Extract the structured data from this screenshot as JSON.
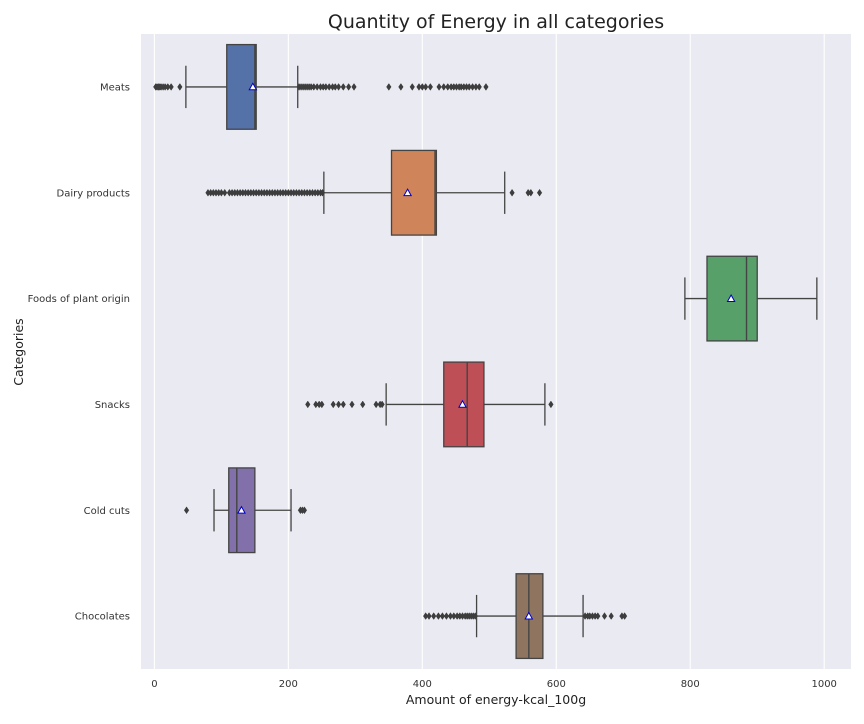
{
  "chart_data": {
    "type": "boxplot",
    "orientation": "horizontal",
    "title": "Quantity of Energy in all categories",
    "xlabel": "Amount of energy-kcal_100g",
    "ylabel": "Categories",
    "xlim": [
      -20,
      1040
    ],
    "xticks": [
      0,
      200,
      400,
      600,
      800,
      1000
    ],
    "grid": true,
    "mean_marker": "triangle",
    "colors": {
      "background": "#eaeaf2",
      "grid": "#ffffff",
      "mean_fill": "#ffffff",
      "mean_edge": "#0000cc",
      "line": "#444444"
    },
    "series": [
      {
        "category": "Meats",
        "color": "#5471a8",
        "whisker_low": 47,
        "q1": 108,
        "median": 150,
        "q3": 152,
        "whisker_high": 214,
        "mean": 147,
        "outliers": [
          2,
          4,
          6,
          8,
          10,
          13,
          16,
          20,
          25,
          38,
          216,
          219,
          222,
          225,
          228,
          231,
          234,
          238,
          243,
          248,
          252,
          256,
          261,
          266,
          270,
          275,
          282,
          290,
          298,
          350,
          368,
          385,
          395,
          400,
          405,
          412,
          425,
          432,
          438,
          443,
          447,
          451,
          455,
          458,
          462,
          466,
          470,
          475,
          480,
          485,
          495
        ]
      },
      {
        "category": "Dairy products",
        "color": "#cf845a",
        "whisker_low": 253,
        "q1": 354,
        "median": 419,
        "q3": 421,
        "whisker_high": 523,
        "mean": 378,
        "outliers": [
          80,
          84,
          88,
          92,
          96,
          100,
          105,
          112,
          116,
          120,
          124,
          128,
          132,
          136,
          140,
          144,
          148,
          152,
          156,
          160,
          164,
          168,
          172,
          176,
          180,
          184,
          188,
          192,
          196,
          200,
          204,
          208,
          212,
          216,
          220,
          224,
          228,
          232,
          236,
          240,
          244,
          248,
          251,
          534,
          558,
          562,
          575
        ]
      },
      {
        "category": "Foods of plant origin",
        "color": "#57a06a",
        "whisker_low": 792,
        "q1": 825,
        "median": 884,
        "q3": 900,
        "whisker_high": 989,
        "mean": 861,
        "outliers": []
      },
      {
        "category": "Snacks",
        "color": "#bf4f57",
        "whisker_low": 346,
        "q1": 432,
        "median": 467,
        "q3": 492,
        "whisker_high": 583,
        "mean": 460,
        "outliers": [
          229,
          241,
          246,
          250,
          267,
          275,
          282,
          295,
          311,
          331,
          337,
          340,
          592
        ]
      },
      {
        "category": "Cold cuts",
        "color": "#8170aa",
        "whisker_low": 89,
        "q1": 111,
        "median": 123,
        "q3": 150,
        "whisker_high": 204,
        "mean": 130,
        "outliers": [
          48,
          218,
          221,
          224
        ]
      },
      {
        "category": "Chocolates",
        "color": "#8f7460",
        "whisker_low": 481,
        "q1": 540,
        "median": 559,
        "q3": 580,
        "whisker_high": 640,
        "mean": 559,
        "outliers": [
          405,
          410,
          417,
          424,
          430,
          436,
          442,
          447,
          452,
          456,
          460,
          464,
          467,
          470,
          473,
          476,
          479,
          643,
          647,
          650,
          654,
          658,
          662,
          672,
          682,
          698,
          702
        ]
      }
    ]
  }
}
